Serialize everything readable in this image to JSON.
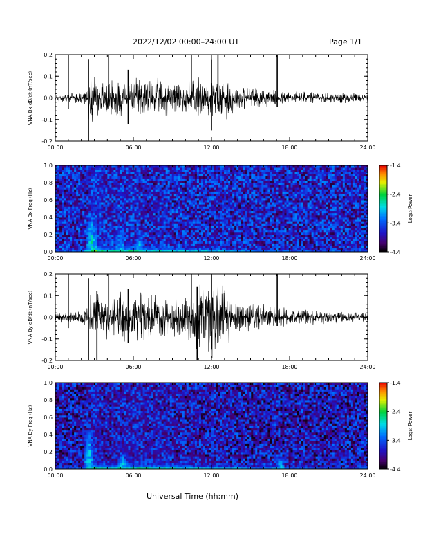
{
  "header": {
    "title": "2022/12/02  00:00–24:00 UT",
    "page_label": "Page 1/1"
  },
  "xlabel": "Universal Time (hh:mm)",
  "chart_data": [
    {
      "id": "bx-dbdt",
      "type": "line",
      "ylabel": "VNA Bx dB/dt (nT/sec)",
      "xlim": [
        0,
        24
      ],
      "ylim": [
        -0.2,
        0.2
      ],
      "xticks": [
        "00:00",
        "06:00",
        "12:00",
        "18:00",
        "24:00"
      ],
      "yticks": [
        "-0.2",
        "-0.1",
        "0.0",
        "0.1",
        "0.2"
      ],
      "color": "#000000",
      "envelope": {
        "hours": [
          0,
          1,
          2,
          2.5,
          2.6,
          3,
          3.5,
          4,
          4.5,
          5,
          5.5,
          6,
          6.5,
          7,
          7.5,
          8,
          8.5,
          9,
          9.5,
          10,
          10.5,
          11,
          11.5,
          12,
          12.5,
          13,
          13.5,
          14,
          15,
          16,
          17,
          18,
          19,
          20,
          21,
          22,
          23,
          24
        ],
        "amplitude": [
          0.01,
          0.012,
          0.014,
          0.02,
          0.07,
          0.06,
          0.05,
          0.05,
          0.045,
          0.06,
          0.05,
          0.05,
          0.06,
          0.06,
          0.05,
          0.05,
          0.05,
          0.04,
          0.045,
          0.05,
          0.05,
          0.055,
          0.05,
          0.06,
          0.06,
          0.06,
          0.05,
          0.035,
          0.03,
          0.025,
          0.02,
          0.02,
          0.018,
          0.016,
          0.015,
          0.014,
          0.012,
          0.01
        ]
      },
      "spikes": [
        {
          "hour": 1.0,
          "low": -0.05,
          "high": 0.2
        },
        {
          "hour": 2.55,
          "low": -0.2,
          "high": 0.18
        },
        {
          "hour": 4.1,
          "low": -0.04,
          "high": 0.2
        },
        {
          "hour": 5.6,
          "low": -0.12,
          "high": 0.13
        },
        {
          "hour": 10.45,
          "low": -0.04,
          "high": 0.2
        },
        {
          "hour": 12.0,
          "low": -0.15,
          "high": 0.18
        },
        {
          "hour": 12.5,
          "low": -0.05,
          "high": 0.2
        },
        {
          "hour": 17.05,
          "low": -0.04,
          "high": 0.2
        }
      ]
    },
    {
      "id": "bx-spectrogram",
      "type": "heatmap",
      "ylabel": "VNA Bx Freq (Hz)",
      "xlim": [
        0,
        24
      ],
      "ylim": [
        0.0,
        1.0
      ],
      "xticks": [
        "00:00",
        "06:00",
        "12:00",
        "18:00",
        "24:00"
      ],
      "yticks": [
        "0.0",
        "0.2",
        "0.4",
        "0.6",
        "0.8",
        "1.0"
      ],
      "colorbar": {
        "label": "Log₁₀ Power",
        "min": -4.4,
        "max": -1.4,
        "ticks": [
          "-1.4",
          "-2.4",
          "-3.4",
          "-4.4"
        ]
      },
      "background_log_power": -3.7,
      "low_freq_band": {
        "hours": [
          0,
          2,
          3,
          4,
          5,
          6,
          8,
          10,
          12,
          14,
          16,
          18,
          20,
          22,
          24
        ],
        "log_power": [
          -3.2,
          -3.0,
          -2.0,
          -2.4,
          -2.3,
          -2.3,
          -2.5,
          -2.6,
          -2.6,
          -2.8,
          -3.0,
          -3.1,
          -3.2,
          -3.2,
          -3.3
        ]
      },
      "bursts": [
        {
          "hour": 2.8,
          "max_freq": 0.4,
          "log_power": -2.6
        },
        {
          "hour": 5.0,
          "max_freq": 0.25,
          "log_power": -2.8
        },
        {
          "hour": 6.5,
          "max_freq": 0.25,
          "log_power": -2.8
        }
      ]
    },
    {
      "id": "by-dbdt",
      "type": "line",
      "ylabel": "VNA By dB/dt (nT/sec)",
      "xlim": [
        0,
        24
      ],
      "ylim": [
        -0.2,
        0.2
      ],
      "xticks": [
        "00:00",
        "06:00",
        "12:00",
        "18:00",
        "24:00"
      ],
      "yticks": [
        "-0.2",
        "-0.1",
        "0.0",
        "0.1",
        "0.2"
      ],
      "color": "#000000",
      "envelope": {
        "hours": [
          0,
          1,
          2,
          2.5,
          2.6,
          3,
          3.5,
          4,
          4.5,
          5,
          5.5,
          6,
          6.5,
          7,
          7.5,
          8,
          8.5,
          9,
          9.5,
          10,
          10.5,
          11,
          11.5,
          12,
          12.5,
          13,
          13.5,
          14,
          15,
          16,
          17,
          18,
          19,
          20,
          21,
          22,
          23,
          24
        ],
        "amplitude": [
          0.012,
          0.015,
          0.018,
          0.025,
          0.07,
          0.07,
          0.06,
          0.06,
          0.06,
          0.07,
          0.06,
          0.06,
          0.07,
          0.07,
          0.06,
          0.06,
          0.06,
          0.05,
          0.06,
          0.07,
          0.08,
          0.1,
          0.11,
          0.12,
          0.1,
          0.08,
          0.06,
          0.045,
          0.04,
          0.035,
          0.03,
          0.025,
          0.022,
          0.02,
          0.018,
          0.016,
          0.014,
          0.012
        ]
      },
      "spikes": [
        {
          "hour": 1.0,
          "low": -0.05,
          "high": 0.2
        },
        {
          "hour": 2.55,
          "low": -0.2,
          "high": 0.18
        },
        {
          "hour": 3.2,
          "low": -0.2,
          "high": 0.12
        },
        {
          "hour": 4.1,
          "low": -0.04,
          "high": 0.2
        },
        {
          "hour": 5.6,
          "low": -0.12,
          "high": 0.13
        },
        {
          "hour": 10.45,
          "low": -0.04,
          "high": 0.2
        },
        {
          "hour": 10.9,
          "low": -0.2,
          "high": 0.14
        },
        {
          "hour": 12.0,
          "low": -0.15,
          "high": 0.2
        },
        {
          "hour": 17.05,
          "low": -0.04,
          "high": 0.2
        }
      ]
    },
    {
      "id": "by-spectrogram",
      "type": "heatmap",
      "ylabel": "VNA By Freq (Hz)",
      "xlim": [
        0,
        24
      ],
      "ylim": [
        0.0,
        1.0
      ],
      "xticks": [
        "00:00",
        "06:00",
        "12:00",
        "18:00",
        "24:00"
      ],
      "yticks": [
        "0.0",
        "0.2",
        "0.4",
        "0.6",
        "0.8",
        "1.0"
      ],
      "colorbar": {
        "label": "Log₁₀ Power",
        "min": -4.4,
        "max": -1.4,
        "ticks": [
          "-1.4",
          "-2.4",
          "-3.4",
          "-4.4"
        ]
      },
      "background_log_power": -3.8,
      "low_freq_band": {
        "hours": [
          0,
          2,
          3,
          4,
          5,
          6,
          8,
          10,
          12,
          14,
          16,
          17,
          18,
          20,
          22,
          24
        ],
        "log_power": [
          -3.2,
          -3.0,
          -2.2,
          -2.5,
          -2.4,
          -2.3,
          -2.4,
          -2.5,
          -2.6,
          -2.7,
          -2.9,
          -2.6,
          -3.0,
          -3.1,
          -3.2,
          -3.3
        ]
      },
      "bursts": [
        {
          "hour": 2.6,
          "max_freq": 0.45,
          "log_power": -2.7
        },
        {
          "hour": 5.2,
          "max_freq": 0.2,
          "log_power": -2.8
        },
        {
          "hour": 17.3,
          "max_freq": 0.15,
          "log_power": -2.8
        }
      ]
    }
  ]
}
